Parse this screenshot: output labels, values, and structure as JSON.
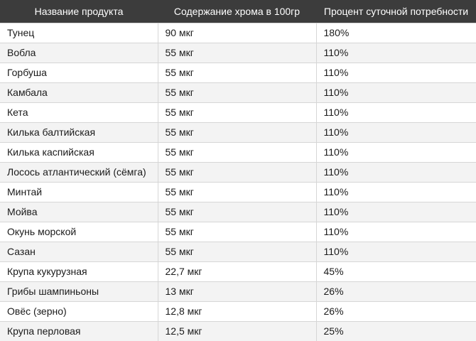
{
  "table": {
    "headers": [
      "Название продукта",
      "Содержание хрома в 100гр",
      "Процент суточной потребности"
    ],
    "rows": [
      [
        "Тунец",
        "90 мкг",
        "180%"
      ],
      [
        "Вобла",
        "55 мкг",
        "110%"
      ],
      [
        "Горбуша",
        "55 мкг",
        "110%"
      ],
      [
        "Камбала",
        "55 мкг",
        "110%"
      ],
      [
        "Кета",
        "55 мкг",
        "110%"
      ],
      [
        "Килька балтийская",
        "55 мкг",
        "110%"
      ],
      [
        "Килька каспийская",
        "55 мкг",
        "110%"
      ],
      [
        "Лосось атлантический (сёмга)",
        "55 мкг",
        "110%"
      ],
      [
        "Минтай",
        "55 мкг",
        "110%"
      ],
      [
        "Мойва",
        "55 мкг",
        "110%"
      ],
      [
        "Окунь морской",
        "55 мкг",
        "110%"
      ],
      [
        "Сазан",
        "55 мкг",
        "110%"
      ],
      [
        "Крупа кукурузная",
        "22,7 мкг",
        "45%"
      ],
      [
        "Грибы шампиньоны",
        "13 мкг",
        "26%"
      ],
      [
        "Овёс (зерно)",
        "12,8 мкг",
        "26%"
      ],
      [
        "Крупа перловая",
        "12,5 мкг",
        "25%"
      ]
    ]
  },
  "colors": {
    "header_background": "#3c3c3c",
    "header_text": "#ffffff",
    "row_alt_background": "#f3f3f3",
    "grid_line": "#d6d6d6"
  }
}
